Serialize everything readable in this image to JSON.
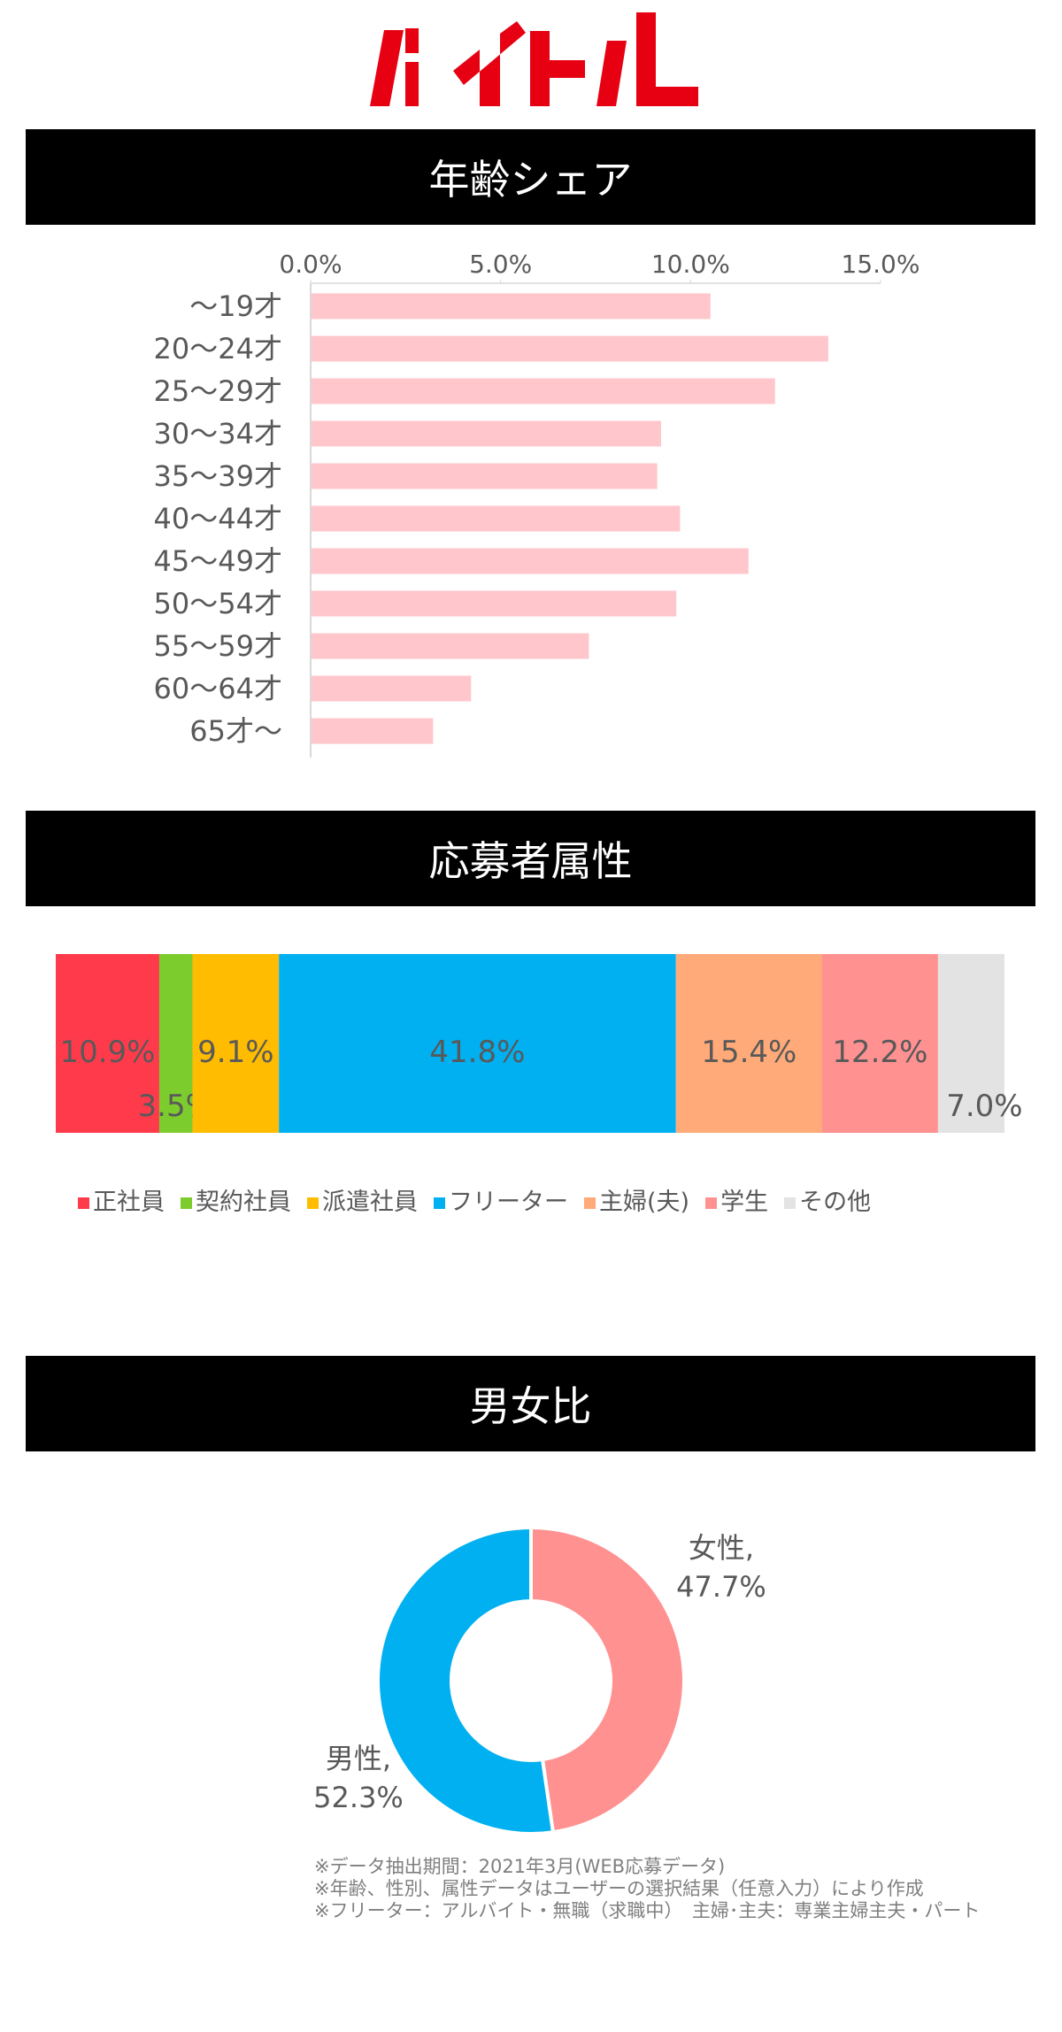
{
  "logo": {
    "text": "バイトル",
    "color": "#E60012"
  },
  "sections": {
    "age": {
      "title": "年齢シェア"
    },
    "attribute": {
      "title": "応募者属性"
    },
    "gender": {
      "title": "男女比"
    }
  },
  "chart_data": [
    {
      "type": "bar",
      "orientation": "horizontal",
      "categories": [
        "～19才",
        "20～24才",
        "25～29才",
        "30～34才",
        "35～39才",
        "40～44才",
        "45～49才",
        "50～54才",
        "55～59才",
        "60～64才",
        "65才～"
      ],
      "values": [
        10.5,
        13.6,
        12.2,
        9.2,
        9.1,
        9.7,
        11.5,
        9.6,
        7.3,
        4.2,
        3.2
      ],
      "unit": "%",
      "xlim": [
        0,
        15
      ],
      "x_ticks": [
        "0.0%",
        "5.0%",
        "10.0%",
        "15.0%"
      ],
      "x_axis_position": "top",
      "grid": false,
      "color": "#FFC7CB"
    },
    {
      "type": "bar",
      "orientation": "horizontal",
      "stacked": true,
      "legend_position": "bottom",
      "series": [
        {
          "name": "正社員",
          "value": 10.9,
          "label": "10.9%",
          "color": "#FF3B4B"
        },
        {
          "name": "契約社員",
          "value": 3.5,
          "label": "3.5%",
          "color": "#7DCC2E"
        },
        {
          "name": "派遣社員",
          "value": 9.1,
          "label": "9.1%",
          "color": "#FFBC00"
        },
        {
          "name": "フリーター",
          "value": 41.8,
          "label": "41.8%",
          "color": "#00B0F0"
        },
        {
          "name": "主婦(夫)",
          "value": 15.4,
          "label": "15.4%",
          "color": "#FFAA78"
        },
        {
          "name": "学生",
          "value": 12.2,
          "label": "12.2%",
          "color": "#FF9191"
        },
        {
          "name": "その他",
          "value": 7.0,
          "label": "7.0%",
          "color": "#E3E3E3"
        }
      ]
    },
    {
      "type": "pie",
      "donut": true,
      "slices": [
        {
          "name": "女性",
          "value": 47.7,
          "label_name": "女性,",
          "label_value": "47.7%",
          "color": "#FF9191"
        },
        {
          "name": "男性",
          "value": 52.3,
          "label_name": "男性,",
          "label_value": "52.3%",
          "color": "#00B0F0"
        }
      ]
    }
  ],
  "notes": [
    "※データ抽出期間：2021年3月(WEB応募データ)",
    "※年齢、性別、属性データはユーザーの選択結果（任意入力）により作成",
    "※フリーター：アルバイト・無職（求職中）　主婦･主夫：専業主婦主夫・パート"
  ]
}
